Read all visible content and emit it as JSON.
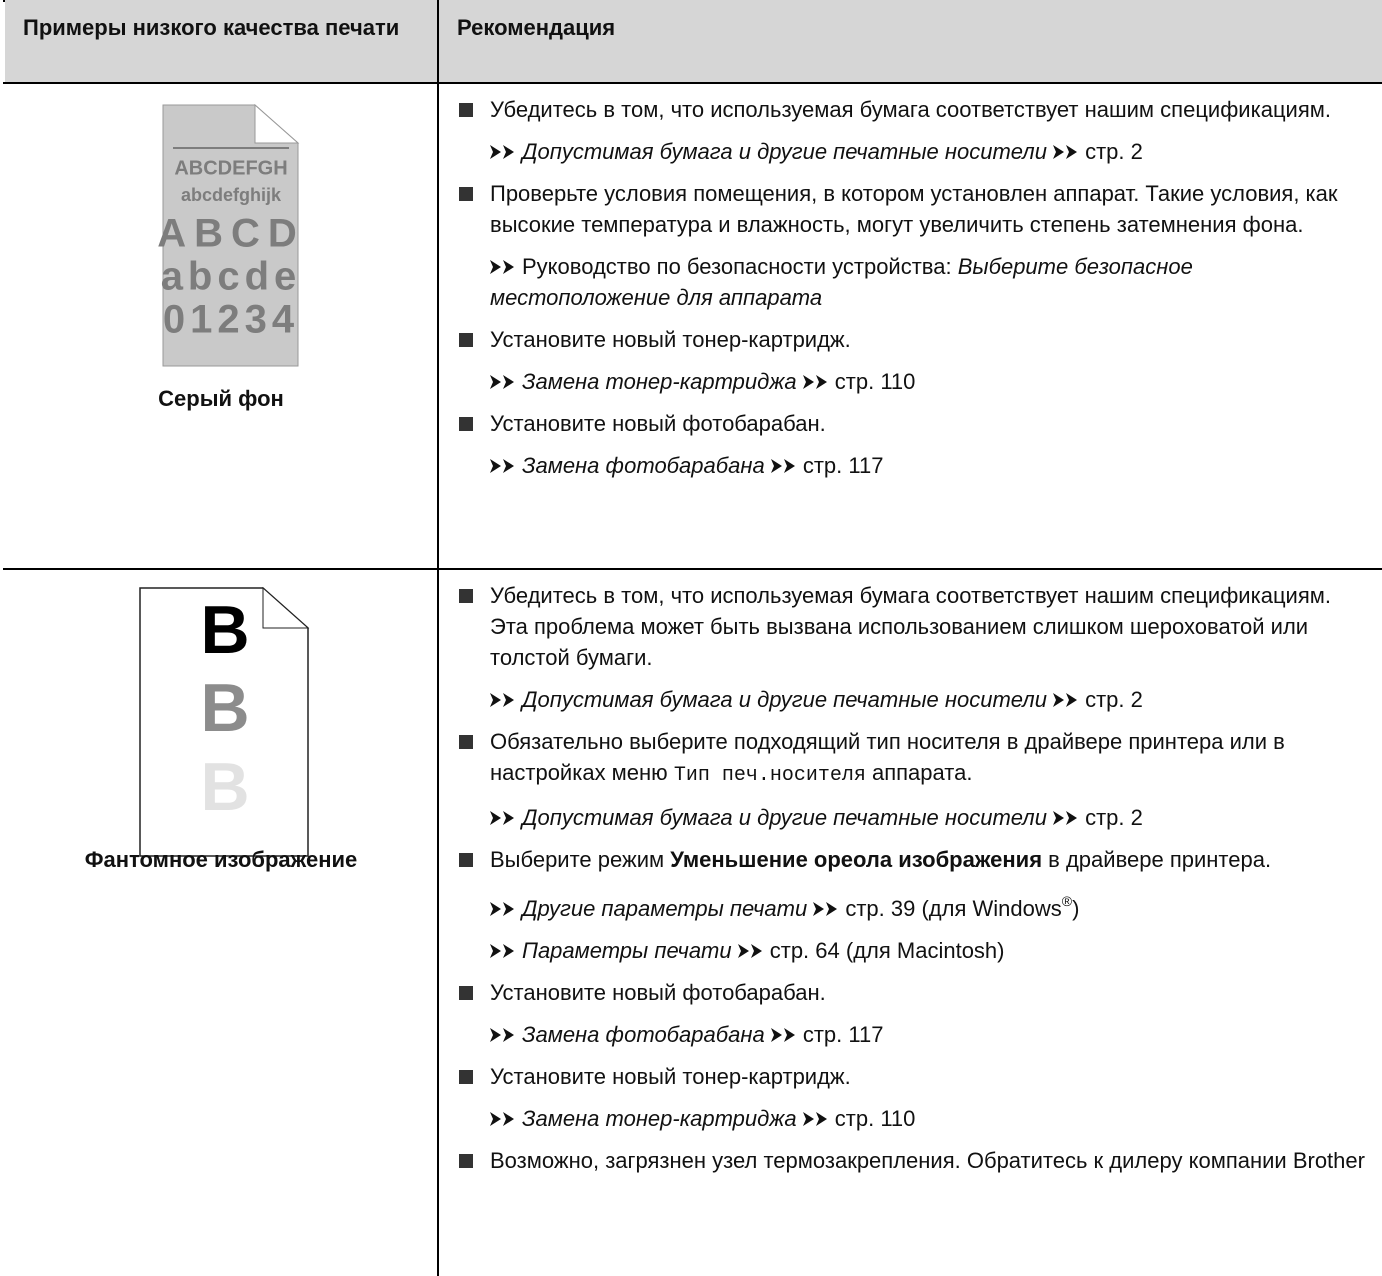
{
  "table": {
    "headers": [
      "Примеры низкого качества печати",
      "Рекомендация"
    ],
    "rows": [
      {
        "image": {
          "kind": "gray",
          "fill": "#c9c9c9",
          "ink": "#7d7d7d",
          "lines": [
            "ABCDEFGH",
            "abcdefghijk",
            "ABCD",
            "abcde",
            "01234"
          ]
        },
        "label": "Серый фон",
        "items": [
          {
            "kind": "bullet",
            "runs": [
              {
                "t": "Убедитесь в том, что используемая бумага соответствует нашим спецификациям."
              }
            ]
          },
          {
            "kind": "ref",
            "runs": [
              {
                "s": "arrow"
              },
              {
                "t": "Допустимая бумага и другие печатные носители",
                "s": "i"
              },
              {
                "s": "arrow"
              },
              {
                "t": "стр. 2"
              }
            ]
          },
          {
            "kind": "bullet",
            "runs": [
              {
                "t": "Проверьте условия помещения, в котором установлен аппарат. Такие условия, как высокие температура и влажность, могут увеличить степень затемнения фона."
              }
            ]
          },
          {
            "kind": "ref",
            "runs": [
              {
                "s": "arrow"
              },
              {
                "t": "Руководство по безопасности устройства:"
              },
              {
                "t": "Выберите безопасное местоположение для аппарата",
                "s": "i"
              }
            ]
          },
          {
            "kind": "bullet",
            "runs": [
              {
                "t": "Установите новый тонер-картридж."
              }
            ]
          },
          {
            "kind": "ref",
            "runs": [
              {
                "s": "arrow"
              },
              {
                "t": "Замена тонер-картриджа",
                "s": "i"
              },
              {
                "s": "arrow"
              },
              {
                "t": "стр. 110"
              }
            ]
          },
          {
            "kind": "bullet",
            "runs": [
              {
                "t": "Установите новый фотобарабан."
              }
            ]
          },
          {
            "kind": "ref",
            "runs": [
              {
                "s": "arrow"
              },
              {
                "t": "Замена фотобарабана",
                "s": "i"
              },
              {
                "s": "arrow"
              },
              {
                "t": "стр. 117"
              }
            ]
          }
        ]
      },
      {
        "image": {
          "kind": "ghost",
          "fill": "#ffffff",
          "letters": [
            "B",
            "B",
            "B"
          ],
          "colors": [
            "#000000",
            "#8c8c8c",
            "#e2e2e2"
          ]
        },
        "label": "Фантомное изображение",
        "items": [
          {
            "kind": "bullet",
            "runs": [
              {
                "t": "Убедитесь в том, что используемая бумага соответствует нашим спецификациям. Эта проблема может быть вызвана использованием слишком шероховатой или толстой бумаги."
              }
            ]
          },
          {
            "kind": "ref",
            "runs": [
              {
                "s": "arrow"
              },
              {
                "t": "Допустимая бумага и другие печатные носители",
                "s": "i"
              },
              {
                "s": "arrow"
              },
              {
                "t": "стр. 2"
              }
            ]
          },
          {
            "kind": "bullet",
            "runs": [
              {
                "t": "Обязательно выберите подходящий тип носителя в драйвере принтера или в настройках меню"
              },
              {
                "t": "Тип печ.носителя",
                "s": "mono"
              },
              {
                "t": "аппарата."
              }
            ]
          },
          {
            "kind": "ref",
            "runs": [
              {
                "s": "arrow"
              },
              {
                "t": "Допустимая бумага и другие печатные носители",
                "s": "i"
              },
              {
                "s": "arrow"
              },
              {
                "t": "стр. 2"
              }
            ]
          },
          {
            "kind": "bullet",
            "runs": [
              {
                "t": "Выберите режим"
              },
              {
                "t": "Уменьшение ореола изображения",
                "s": "b"
              },
              {
                "t": "в драйвере принтера."
              }
            ]
          },
          {
            "kind": "ref",
            "runs": [
              {
                "s": "arrow"
              },
              {
                "t": "Другие параметры печати",
                "s": "i"
              },
              {
                "s": "arrow"
              },
              {
                "t": "стр. 39 (для Windows"
              },
              {
                "t": "®",
                "s": "sup"
              },
              {
                "t": ")"
              }
            ]
          },
          {
            "kind": "ref",
            "runs": [
              {
                "s": "arrow"
              },
              {
                "t": "Параметры печати",
                "s": "i"
              },
              {
                "s": "arrow"
              },
              {
                "t": "стр. 64 (для Macintosh)"
              }
            ]
          },
          {
            "kind": "bullet",
            "runs": [
              {
                "t": "Установите новый фотобарабан."
              }
            ]
          },
          {
            "kind": "ref",
            "runs": [
              {
                "s": "arrow"
              },
              {
                "t": "Замена фотобарабана",
                "s": "i"
              },
              {
                "s": "arrow"
              },
              {
                "t": "стр. 117"
              }
            ]
          },
          {
            "kind": "bullet",
            "runs": [
              {
                "t": "Установите новый тонер-картридж."
              }
            ]
          },
          {
            "kind": "ref",
            "runs": [
              {
                "s": "arrow"
              },
              {
                "t": "Замена тонер-картриджа",
                "s": "i"
              },
              {
                "s": "arrow"
              },
              {
                "t": "стр. 110"
              }
            ]
          },
          {
            "kind": "bullet",
            "runs": [
              {
                "t": "Возможно, загрязнен узел термозакрепления. Обратитесь к дилеру компании Brother"
              }
            ]
          }
        ]
      }
    ]
  }
}
